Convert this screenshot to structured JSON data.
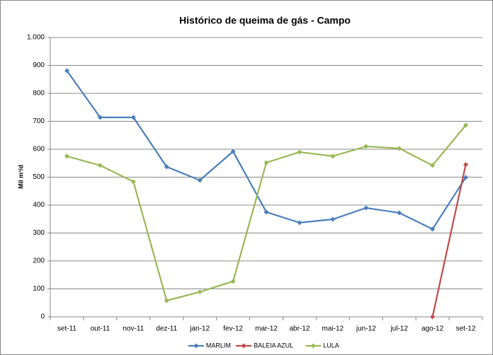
{
  "chart_data": {
    "type": "line",
    "title": "Histórico de queima de gás - Campo",
    "ylabel": "Mil m³/d",
    "categories": [
      "set-11",
      "out-11",
      "nov-11",
      "dez-11",
      "jan-12",
      "fev-12",
      "mar-12",
      "abr-12",
      "mai-12",
      "jun-12",
      "jul-12",
      "ago-12",
      "set-12"
    ],
    "series": [
      {
        "name": "MARLIM",
        "color": "#4a7ebb",
        "values": [
          881,
          714,
          714,
          537,
          489,
          592,
          375,
          337,
          349,
          390,
          372,
          314,
          499
        ]
      },
      {
        "name": "BALEIA AZUL",
        "color": "#be4b48",
        "values": [
          null,
          null,
          null,
          null,
          null,
          null,
          null,
          null,
          null,
          null,
          null,
          0,
          545
        ]
      },
      {
        "name": "LULA",
        "color": "#98b954",
        "values": [
          575,
          542,
          484,
          58,
          89,
          127,
          552,
          590,
          575,
          610,
          603,
          542,
          686
        ]
      }
    ],
    "ylim": [
      0,
      1000
    ],
    "yticks": [
      0,
      100,
      200,
      300,
      400,
      500,
      600,
      700,
      800,
      900,
      {
        "value": 1000,
        "label": "1.000"
      }
    ],
    "grid": true,
    "legend": "bottom"
  }
}
